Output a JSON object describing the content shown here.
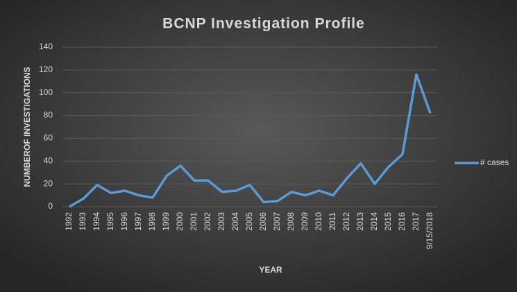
{
  "chart_data": {
    "type": "line",
    "title": "BCNP Investigation Profile",
    "x_label": "YEAR",
    "y_label": "NUMBEROF INVESTIGATIONS",
    "categories": [
      "1992",
      "1993",
      "1994",
      "1995",
      "1996",
      "1997",
      "1998",
      "1999",
      "2000",
      "2001",
      "2002",
      "2003",
      "2004",
      "2005",
      "2006",
      "2007",
      "2008",
      "2009",
      "2010",
      "2011",
      "2012",
      "2013",
      "2014",
      "2015",
      "2016",
      "2017",
      "9/15/2018"
    ],
    "series": [
      {
        "name": "# cases",
        "color": "#5b9bd5",
        "values": [
          0,
          7,
          19,
          12,
          14,
          10,
          8,
          27,
          36,
          23,
          23,
          13,
          14,
          19,
          4,
          5,
          13,
          10,
          14,
          10,
          25,
          38,
          20,
          35,
          46,
          116,
          82
        ]
      }
    ],
    "ylim": [
      0,
      140
    ],
    "yticks": [
      0,
      20,
      40,
      60,
      80,
      100,
      120,
      140
    ],
    "grid": true,
    "legend": "right"
  }
}
